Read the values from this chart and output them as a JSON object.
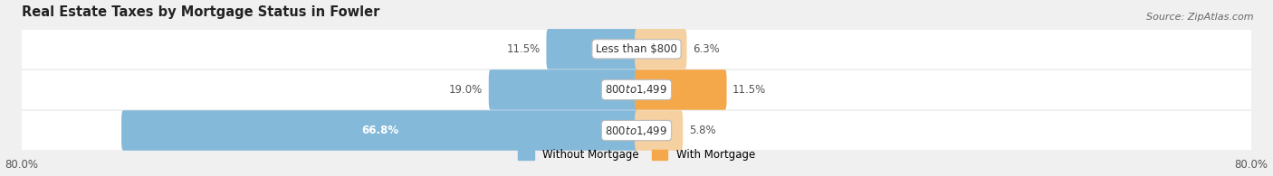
{
  "title": "Real Estate Taxes by Mortgage Status in Fowler",
  "source": "Source: ZipAtlas.com",
  "rows": [
    {
      "label": "Less than $800",
      "without": 11.5,
      "with": 6.3
    },
    {
      "label": "$800 to $1,499",
      "without": 19.0,
      "with": 11.5
    },
    {
      "label": "$800 to $1,499",
      "without": 66.8,
      "with": 5.8
    }
  ],
  "xlim": [
    -80,
    80
  ],
  "xtick_positions": [
    -80,
    80
  ],
  "xtick_labels": [
    "80.0%",
    "80.0%"
  ],
  "color_without": "#85b9d9",
  "color_with": "#f5a84a",
  "color_with_light": "#f5d0a0",
  "bg_color": "#f0f0f0",
  "row_bg_color": "#e0e0e0",
  "bar_height": 0.52,
  "legend_labels": [
    "Without Mortgage",
    "With Mortgage"
  ],
  "title_fontsize": 10.5,
  "source_fontsize": 8,
  "label_fontsize": 8.5,
  "pct_fontsize": 8.5,
  "tick_fontsize": 8.5
}
